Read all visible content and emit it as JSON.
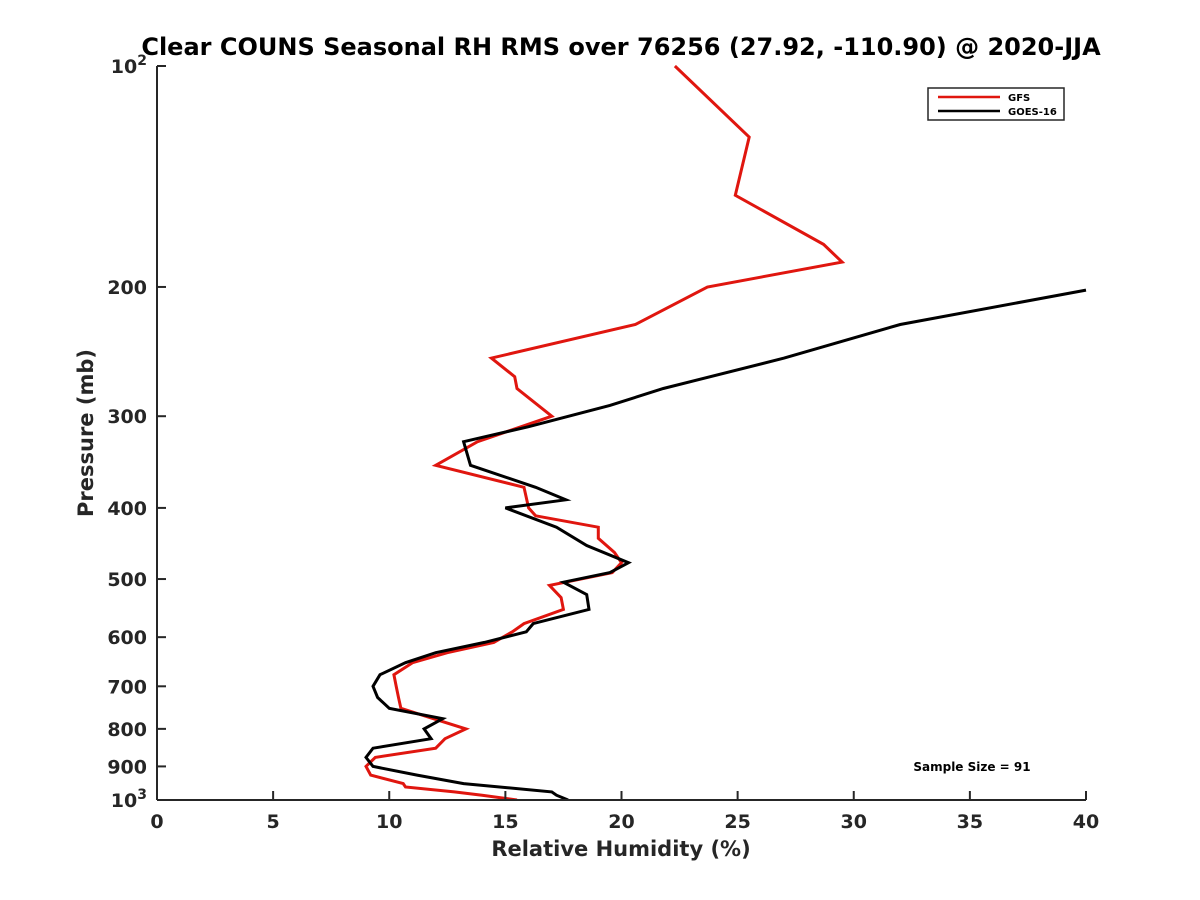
{
  "chart_data": {
    "type": "line",
    "title": "Clear COUNS Seasonal RH RMS over 76256 (27.92, -110.90) @ 2020-JJA",
    "xlabel": "Relative Humidity (%)",
    "ylabel": "Pressure (mb)",
    "xlim": [
      0,
      40
    ],
    "ylim": [
      100,
      1000
    ],
    "yscale": "log",
    "y_reversed": true,
    "x_ticks": [
      0,
      5,
      10,
      15,
      20,
      25,
      30,
      35,
      40
    ],
    "y_ticks": [
      {
        "value": 100,
        "label": "10",
        "sup": "2"
      },
      {
        "value": 200,
        "label": "200",
        "sup": ""
      },
      {
        "value": 300,
        "label": "300",
        "sup": ""
      },
      {
        "value": 400,
        "label": "400",
        "sup": ""
      },
      {
        "value": 500,
        "label": "500",
        "sup": ""
      },
      {
        "value": 600,
        "label": "600",
        "sup": ""
      },
      {
        "value": 700,
        "label": "700",
        "sup": ""
      },
      {
        "value": 800,
        "label": "800",
        "sup": ""
      },
      {
        "value": 900,
        "label": "900",
        "sup": ""
      },
      {
        "value": 1000,
        "label": "10",
        "sup": "3"
      }
    ],
    "grid": false,
    "legend_position": "top-right",
    "annotation": "Sample Size = 91",
    "series": [
      {
        "name": "GFS",
        "color": "#e0160f",
        "points": [
          [
            22.3,
            100
          ],
          [
            25.5,
            125
          ],
          [
            24.9,
            150
          ],
          [
            28.7,
            175
          ],
          [
            29.5,
            185
          ],
          [
            23.7,
            200
          ],
          [
            20.6,
            225
          ],
          [
            14.4,
            250
          ],
          [
            15.4,
            265
          ],
          [
            15.5,
            275
          ],
          [
            17.0,
            300
          ],
          [
            13.8,
            325
          ],
          [
            12.0,
            350
          ],
          [
            15.8,
            375
          ],
          [
            16.0,
            400
          ],
          [
            16.3,
            410
          ],
          [
            19.0,
            425
          ],
          [
            19.0,
            440
          ],
          [
            19.7,
            460
          ],
          [
            20.0,
            475
          ],
          [
            19.6,
            490
          ],
          [
            16.9,
            510
          ],
          [
            17.4,
            530
          ],
          [
            17.5,
            550
          ],
          [
            15.8,
            575
          ],
          [
            15.3,
            590
          ],
          [
            14.5,
            610
          ],
          [
            12.5,
            630
          ],
          [
            11.0,
            650
          ],
          [
            10.2,
            675
          ],
          [
            10.3,
            700
          ],
          [
            10.4,
            725
          ],
          [
            10.5,
            750
          ],
          [
            11.9,
            775
          ],
          [
            13.3,
            800
          ],
          [
            12.4,
            825
          ],
          [
            12.0,
            850
          ],
          [
            9.4,
            875
          ],
          [
            9.0,
            900
          ],
          [
            9.2,
            925
          ],
          [
            10.6,
            950
          ],
          [
            10.7,
            960
          ],
          [
            12.8,
            975
          ],
          [
            14.0,
            985
          ],
          [
            15.5,
            1000
          ]
        ]
      },
      {
        "name": "GOES-16",
        "color": "#000000",
        "points": [
          [
            40.0,
            202
          ],
          [
            32.0,
            225
          ],
          [
            27.0,
            250
          ],
          [
            21.8,
            275
          ],
          [
            19.5,
            290
          ],
          [
            16.0,
            310
          ],
          [
            13.2,
            325
          ],
          [
            13.5,
            350
          ],
          [
            16.3,
            375
          ],
          [
            17.6,
            390
          ],
          [
            15.0,
            400
          ],
          [
            17.2,
            425
          ],
          [
            18.5,
            450
          ],
          [
            20.3,
            475
          ],
          [
            19.5,
            490
          ],
          [
            17.5,
            505
          ],
          [
            18.5,
            525
          ],
          [
            18.6,
            550
          ],
          [
            16.2,
            575
          ],
          [
            15.9,
            590
          ],
          [
            14.1,
            610
          ],
          [
            12.0,
            630
          ],
          [
            10.7,
            650
          ],
          [
            9.6,
            675
          ],
          [
            9.3,
            700
          ],
          [
            9.5,
            725
          ],
          [
            10.0,
            750
          ],
          [
            12.3,
            775
          ],
          [
            11.5,
            800
          ],
          [
            11.8,
            825
          ],
          [
            9.3,
            850
          ],
          [
            9.0,
            875
          ],
          [
            9.3,
            900
          ],
          [
            11.2,
            925
          ],
          [
            13.2,
            950
          ],
          [
            17.0,
            975
          ],
          [
            17.2,
            985
          ],
          [
            17.7,
            1000
          ]
        ]
      }
    ]
  }
}
